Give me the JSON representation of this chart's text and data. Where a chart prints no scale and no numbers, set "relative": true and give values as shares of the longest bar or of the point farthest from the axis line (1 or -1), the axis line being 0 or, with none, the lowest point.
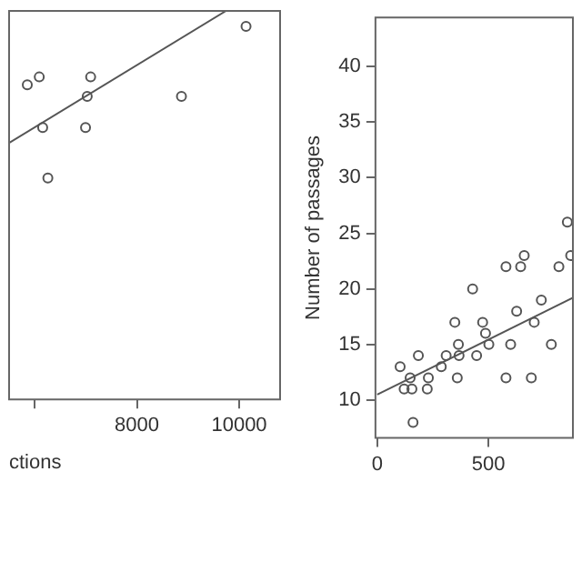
{
  "chart_data": [
    {
      "type": "scatter",
      "xlabel": "ctions",
      "relative": true,
      "tick_labels": "x",
      "marker": "circle",
      "xlim": [
        5500,
        10800
      ],
      "xticks": [
        {
          "value": 6000,
          "label": null
        },
        8000,
        10000
      ],
      "series": [
        {
          "color": "#555555",
          "x": [
            5856,
            6090,
            7095,
            7028,
            6157,
            6995,
            6258,
            8871,
            10134
          ],
          "values": [
            0.81,
            0.83,
            0.83,
            0.78,
            0.7,
            0.7,
            0.57,
            0.78,
            0.96
          ]
        },
        {
          "type": "line",
          "marker": "none",
          "color": "#555555",
          "x": [
            5500,
            9742
          ],
          "values": [
            0.66,
            1
          ]
        }
      ]
    },
    {
      "type": "scatter",
      "ylabel": "Number of passages",
      "marker": "circle",
      "xlim": [
        -8,
        880
      ],
      "xticks": [
        0,
        500
      ],
      "ylim": [
        6.6,
        44.4
      ],
      "yticks": [
        10,
        15,
        20,
        25,
        30,
        35,
        40
      ],
      "series": [
        {
          "color": "#555555",
          "x": [
            103,
            121,
            156,
            148,
            185,
            161,
            230,
            225,
            288,
            310,
            349,
            365,
            368,
            360,
            447,
            474,
            487,
            502,
            579,
            600,
            627,
            693,
            706,
            738,
            783,
            429,
            579,
            645,
            661,
            817,
            855,
            870
          ],
          "values": [
            13,
            11,
            11,
            12,
            14,
            8,
            12,
            11,
            13,
            14,
            17,
            15,
            14,
            12,
            14,
            17,
            16,
            15,
            12,
            15,
            18,
            12,
            17,
            19,
            15,
            20,
            22,
            22,
            23,
            22,
            26,
            23
          ]
        },
        {
          "type": "line",
          "marker": "none",
          "color": "#555555",
          "x": [
            0,
            880
          ],
          "values": [
            10.5,
            19.2
          ]
        }
      ]
    }
  ]
}
